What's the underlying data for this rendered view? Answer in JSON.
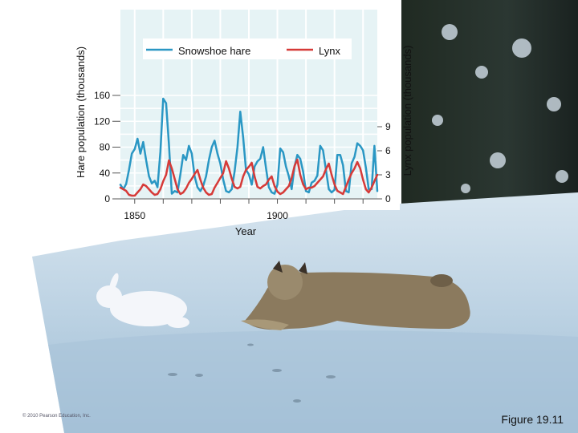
{
  "chart_data": {
    "type": "line",
    "xlabel": "Year",
    "ylabel_left": "Hare population (thousands)",
    "ylabel_right": "Lynx population (thousands)",
    "xlim": [
      1845,
      1935
    ],
    "ylim_left": [
      0,
      160
    ],
    "ylim_right": [
      0,
      9
    ],
    "x_ticks": [
      1850,
      1900
    ],
    "y_ticks_left": [
      0,
      40,
      80,
      120,
      160
    ],
    "y_ticks_right": [
      0,
      3,
      6,
      9
    ],
    "grid": true,
    "legend": "top",
    "series": [
      {
        "name": "Snowshoe hare",
        "axis": "left",
        "color": "#2a97c4",
        "x": [
          1845,
          1846,
          1847,
          1848,
          1849,
          1850,
          1851,
          1852,
          1853,
          1854,
          1855,
          1856,
          1857,
          1858,
          1859,
          1860,
          1861,
          1862,
          1863,
          1864,
          1865,
          1866,
          1867,
          1868,
          1869,
          1870,
          1871,
          1872,
          1873,
          1874,
          1875,
          1876,
          1877,
          1878,
          1879,
          1880,
          1881,
          1882,
          1883,
          1884,
          1885,
          1886,
          1887,
          1888,
          1889,
          1890,
          1891,
          1892,
          1893,
          1894,
          1895,
          1896,
          1897,
          1898,
          1899,
          1900,
          1901,
          1902,
          1903,
          1904,
          1905,
          1906,
          1907,
          1908,
          1909,
          1910,
          1911,
          1912,
          1913,
          1914,
          1915,
          1916,
          1917,
          1918,
          1919,
          1920,
          1921,
          1922,
          1923,
          1924,
          1925,
          1926,
          1927,
          1928,
          1929,
          1930,
          1931,
          1932,
          1933,
          1934,
          1935
        ],
        "values": [
          22,
          15,
          23,
          45,
          70,
          77,
          93,
          70,
          88,
          60,
          35,
          24,
          28,
          18,
          73,
          155,
          148,
          85,
          8,
          12,
          10,
          38,
          68,
          60,
          82,
          70,
          35,
          18,
          12,
          20,
          35,
          60,
          80,
          90,
          70,
          55,
          30,
          12,
          10,
          15,
          42,
          80,
          135,
          95,
          45,
          38,
          22,
          50,
          58,
          62,
          80,
          48,
          18,
          10,
          8,
          22,
          78,
          72,
          50,
          35,
          15,
          50,
          68,
          62,
          42,
          12,
          10,
          25,
          28,
          36,
          82,
          75,
          45,
          15,
          10,
          14,
          68,
          68,
          52,
          12,
          10,
          55,
          65,
          86,
          82,
          75,
          48,
          15,
          15,
          82,
          12
        ]
      },
      {
        "name": "Lynx",
        "axis": "right",
        "color": "#d63a38",
        "x": [
          1845,
          1846,
          1847,
          1848,
          1849,
          1850,
          1851,
          1852,
          1853,
          1854,
          1855,
          1856,
          1857,
          1858,
          1859,
          1860,
          1861,
          1862,
          1863,
          1864,
          1865,
          1866,
          1867,
          1868,
          1869,
          1870,
          1871,
          1872,
          1873,
          1874,
          1875,
          1876,
          1877,
          1878,
          1879,
          1880,
          1881,
          1882,
          1883,
          1884,
          1885,
          1886,
          1887,
          1888,
          1889,
          1890,
          1891,
          1892,
          1893,
          1894,
          1895,
          1896,
          1897,
          1898,
          1899,
          1900,
          1901,
          1902,
          1903,
          1904,
          1905,
          1906,
          1907,
          1908,
          1909,
          1910,
          1911,
          1912,
          1913,
          1914,
          1915,
          1916,
          1917,
          1918,
          1919,
          1920,
          1921,
          1922,
          1923,
          1924,
          1925,
          1926,
          1927,
          1928,
          1929,
          1930,
          1931,
          1932,
          1933,
          1934,
          1935
        ],
        "values": [
          1.4,
          1.2,
          1.0,
          0.5,
          0.4,
          0.4,
          0.8,
          1.2,
          1.8,
          1.6,
          1.2,
          0.8,
          0.5,
          0.6,
          1.2,
          2.2,
          3.0,
          4.8,
          3.8,
          2.5,
          1.2,
          0.6,
          0.8,
          1.3,
          2.0,
          2.5,
          3.1,
          3.6,
          2.4,
          1.4,
          0.8,
          0.5,
          0.6,
          1.4,
          2.0,
          2.6,
          3.2,
          4.7,
          3.8,
          2.5,
          1.5,
          1.3,
          1.5,
          2.8,
          3.6,
          4.0,
          4.5,
          2.8,
          1.5,
          1.3,
          1.6,
          1.8,
          2.4,
          2.8,
          1.6,
          0.9,
          0.6,
          0.8,
          1.2,
          1.6,
          2.6,
          4.1,
          4.9,
          3.0,
          1.8,
          1.2,
          1.4,
          1.4,
          1.6,
          2.0,
          2.4,
          2.8,
          3.7,
          4.4,
          3.0,
          1.8,
          1.0,
          0.8,
          0.6,
          1.5,
          2.4,
          3.2,
          3.8,
          4.6,
          3.8,
          2.4,
          1.2,
          0.8,
          1.4,
          2.2,
          3.0
        ]
      }
    ]
  },
  "copyright": "© 2010 Pearson Education, Inc.",
  "figure_caption": "Figure 19.11",
  "photo": {
    "sky_color": "#1f2a2c",
    "snow_color": "#c9dbe8",
    "hare_color": "#f4f6fa",
    "lynx_color": "#8b7a5e"
  }
}
